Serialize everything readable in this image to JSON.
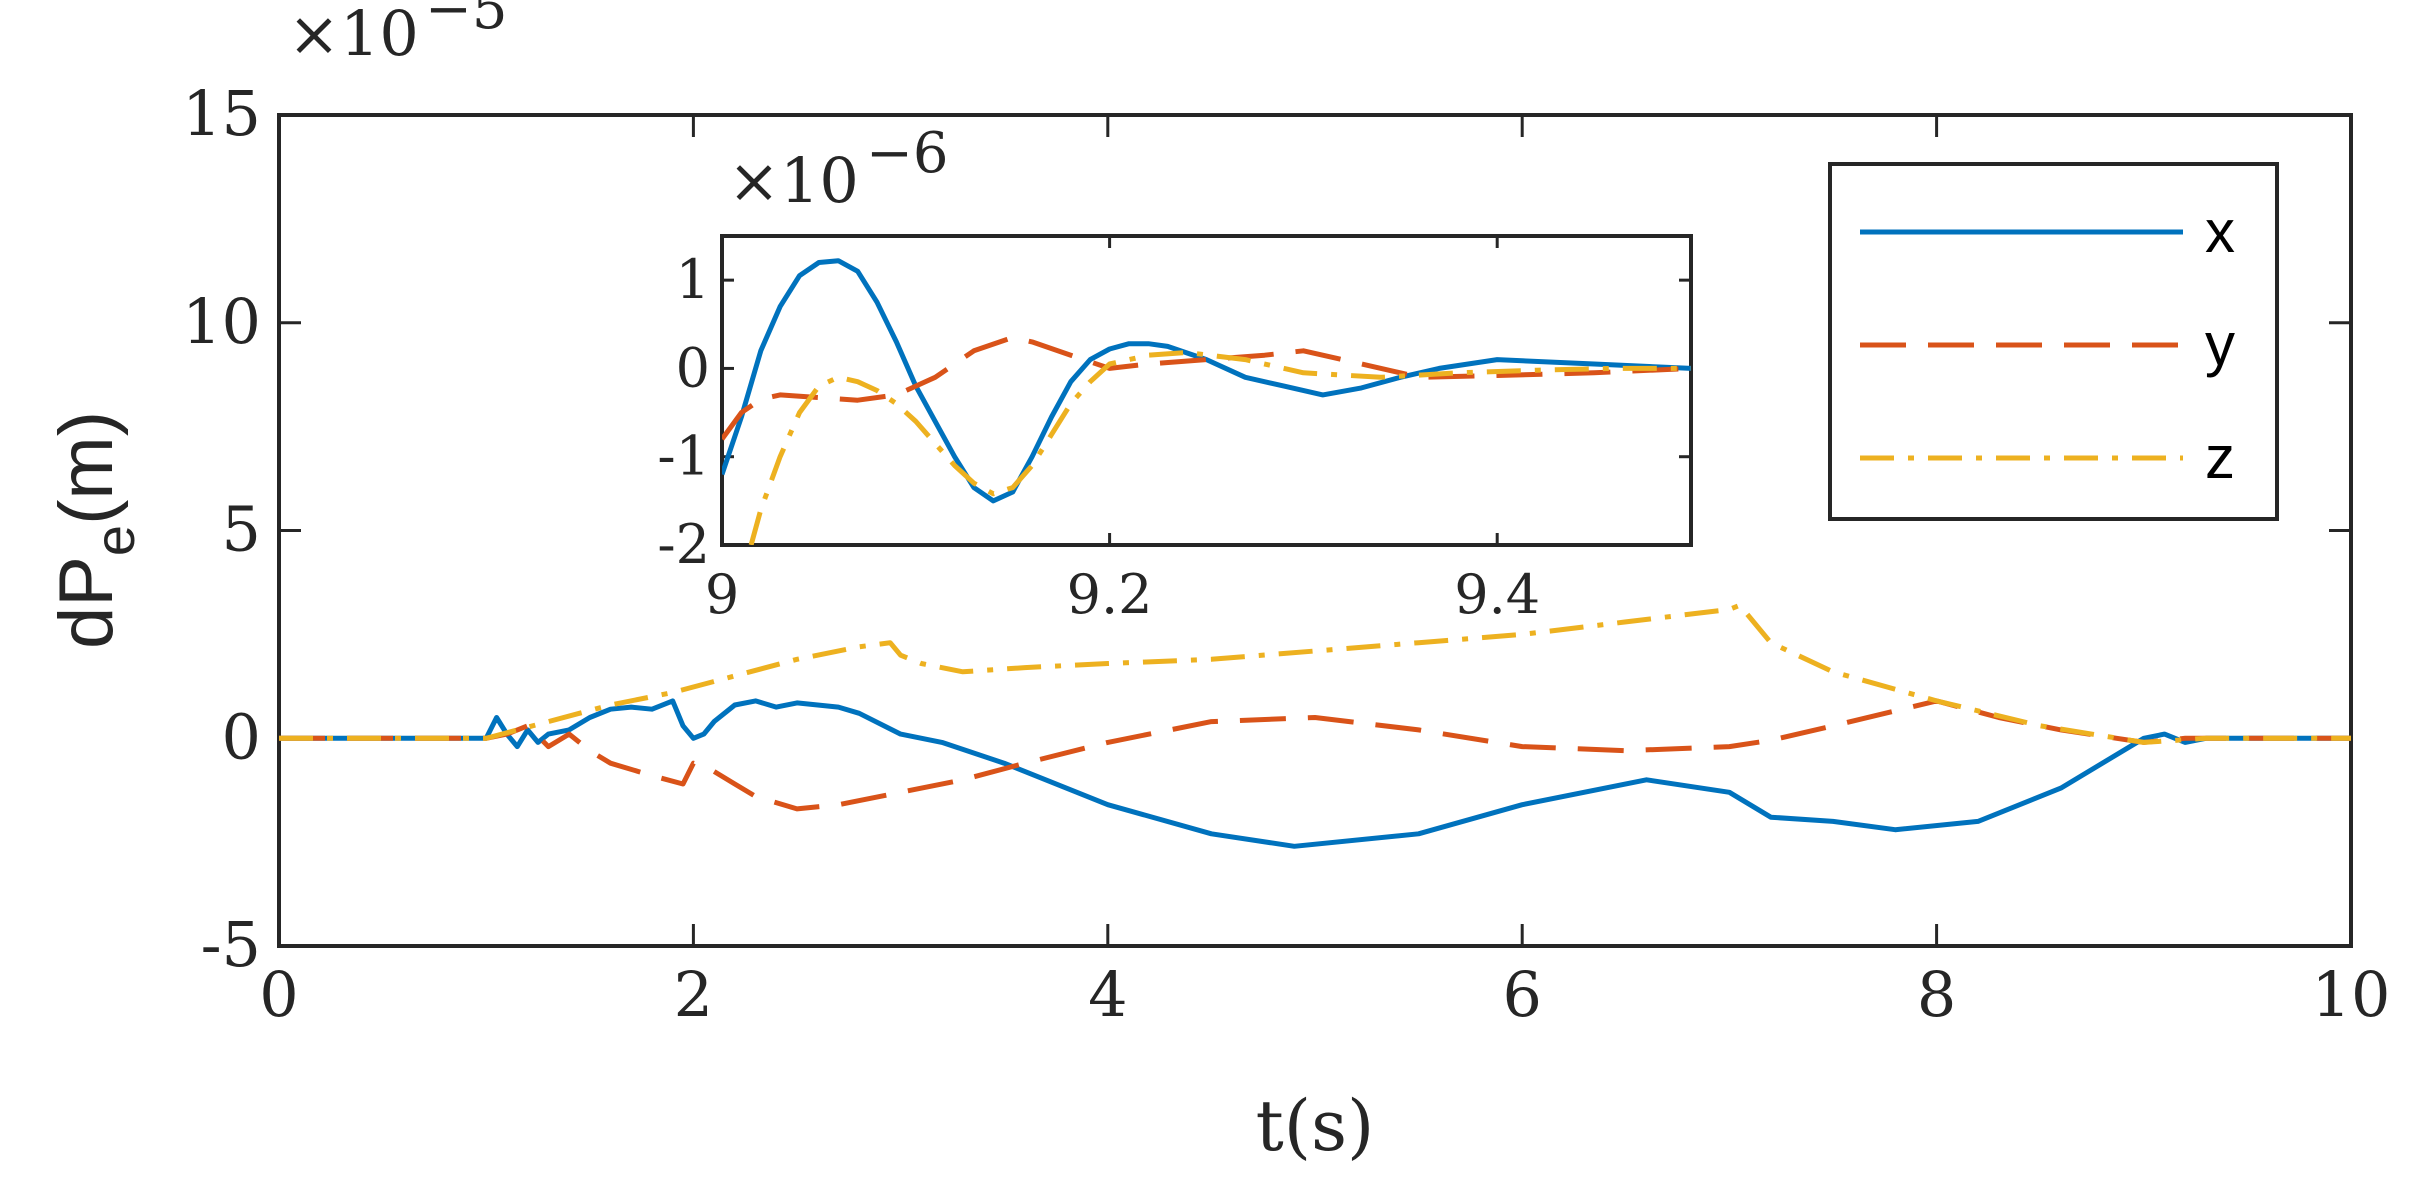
{
  "chart_data": [
    {
      "id": "main",
      "type": "line",
      "title": "",
      "xlabel": "t(s)",
      "ylabel_base": "dP",
      "ylabel_sub": "e",
      "ylabel_unit": "(m)",
      "scale_prefix": "×10",
      "scale_exponent": "−5",
      "xlim": [
        0,
        10
      ],
      "ylim": [
        -5,
        15
      ],
      "xticks": [
        0,
        2,
        4,
        6,
        8,
        10
      ],
      "xtick_labels": [
        "0",
        "2",
        "4",
        "6",
        "8",
        "10"
      ],
      "yticks": [
        -5,
        0,
        5,
        10,
        15
      ],
      "ytick_labels": [
        "-5",
        "0",
        "5",
        "10",
        "15"
      ],
      "grid": false,
      "legend_position": "top-right",
      "series": [
        {
          "name": "x",
          "color": "#0072BD",
          "dash": "solid",
          "x": [
            0,
            1.0,
            1.05,
            1.1,
            1.15,
            1.2,
            1.25,
            1.3,
            1.4,
            1.5,
            1.6,
            1.7,
            1.8,
            1.9,
            1.95,
            2.0,
            2.05,
            2.1,
            2.2,
            2.3,
            2.4,
            2.5,
            2.6,
            2.7,
            2.8,
            3.0,
            3.2,
            3.5,
            4.0,
            4.5,
            4.9,
            5.5,
            6.0,
            6.6,
            7.0,
            7.2,
            7.5,
            7.8,
            8.2,
            8.6,
            9.0,
            9.1,
            9.2,
            9.3,
            10
          ],
          "y": [
            0,
            0,
            0.5,
            0.1,
            -0.2,
            0.2,
            -0.1,
            0.1,
            0.2,
            0.5,
            0.7,
            0.75,
            0.7,
            0.9,
            0.3,
            0.0,
            0.1,
            0.4,
            0.8,
            0.9,
            0.75,
            0.85,
            0.8,
            0.75,
            0.6,
            0.1,
            -0.1,
            -0.6,
            -1.6,
            -2.3,
            -2.6,
            -2.3,
            -1.6,
            -1.0,
            -1.3,
            -1.9,
            -2.0,
            -2.2,
            -2.0,
            -1.2,
            0.0,
            0.1,
            -0.1,
            0.0,
            0
          ]
        },
        {
          "name": "y",
          "color": "#D95319",
          "dash": "long-dash",
          "x": [
            0,
            1.0,
            1.1,
            1.2,
            1.3,
            1.4,
            1.5,
            1.6,
            1.8,
            1.95,
            2.0,
            2.1,
            2.2,
            2.3,
            2.5,
            2.7,
            3.0,
            3.3,
            3.6,
            4.0,
            4.5,
            5.0,
            5.5,
            6.0,
            6.5,
            7.0,
            7.2,
            7.5,
            8.0,
            8.3,
            8.6,
            9.0,
            9.2,
            10
          ],
          "y": [
            0,
            0,
            0.1,
            0.3,
            -0.2,
            0.1,
            -0.3,
            -0.6,
            -0.9,
            -1.1,
            -0.6,
            -0.8,
            -1.1,
            -1.4,
            -1.7,
            -1.6,
            -1.3,
            -1.0,
            -0.6,
            -0.1,
            0.4,
            0.5,
            0.2,
            -0.2,
            -0.3,
            -0.2,
            -0.05,
            0.3,
            0.9,
            0.5,
            0.2,
            -0.1,
            0.0,
            0
          ]
        },
        {
          "name": "z",
          "color": "#EDB120",
          "dash": "dash-dot",
          "x": [
            0,
            1.0,
            1.3,
            1.6,
            1.9,
            2.2,
            2.5,
            2.8,
            2.95,
            3.0,
            3.1,
            3.3,
            3.6,
            4.0,
            4.5,
            5.0,
            5.5,
            6.0,
            6.5,
            7.0,
            7.05,
            7.2,
            7.5,
            8.0,
            8.5,
            9.0,
            9.3,
            10
          ],
          "y": [
            0,
            0,
            0.4,
            0.8,
            1.1,
            1.5,
            1.9,
            2.2,
            2.3,
            2.0,
            1.8,
            1.6,
            1.7,
            1.8,
            1.9,
            2.1,
            2.3,
            2.5,
            2.8,
            3.1,
            3.2,
            2.3,
            1.6,
            0.9,
            0.3,
            -0.1,
            0.0,
            0
          ]
        }
      ]
    },
    {
      "id": "inset",
      "type": "line",
      "title": "",
      "xlabel": "",
      "ylabel": "",
      "scale_prefix": "×10",
      "scale_exponent": "−6",
      "xlim": [
        9,
        9.5
      ],
      "ylim": [
        -2,
        1.5
      ],
      "xticks": [
        9,
        9.2,
        9.4
      ],
      "xtick_labels": [
        "9",
        "9.2",
        "9.4"
      ],
      "yticks": [
        -2,
        -1,
        0,
        1
      ],
      "ytick_labels": [
        "-2",
        "-1",
        "0",
        "1"
      ],
      "grid": false,
      "series": [
        {
          "name": "x",
          "color": "#0072BD",
          "dash": "solid",
          "x": [
            9.0,
            9.01,
            9.02,
            9.03,
            9.04,
            9.05,
            9.06,
            9.07,
            9.08,
            9.09,
            9.1,
            9.11,
            9.12,
            9.13,
            9.14,
            9.15,
            9.16,
            9.17,
            9.18,
            9.19,
            9.2,
            9.21,
            9.22,
            9.23,
            9.25,
            9.27,
            9.29,
            9.31,
            9.33,
            9.35,
            9.37,
            9.4,
            9.45,
            9.5
          ],
          "y": [
            -1.2,
            -0.55,
            0.2,
            0.7,
            1.05,
            1.2,
            1.22,
            1.1,
            0.75,
            0.3,
            -0.2,
            -0.6,
            -1.0,
            -1.35,
            -1.5,
            -1.4,
            -1.0,
            -0.55,
            -0.15,
            0.1,
            0.22,
            0.28,
            0.28,
            0.25,
            0.1,
            -0.1,
            -0.2,
            -0.3,
            -0.22,
            -0.1,
            0.0,
            0.1,
            0.05,
            0.0
          ]
        },
        {
          "name": "y",
          "color": "#D95319",
          "dash": "long-dash",
          "x": [
            9.0,
            9.01,
            9.02,
            9.03,
            9.05,
            9.07,
            9.09,
            9.11,
            9.13,
            9.15,
            9.16,
            9.18,
            9.2,
            9.22,
            9.25,
            9.28,
            9.3,
            9.33,
            9.36,
            9.4,
            9.45,
            9.5
          ],
          "y": [
            -0.8,
            -0.5,
            -0.35,
            -0.3,
            -0.33,
            -0.36,
            -0.3,
            -0.1,
            0.2,
            0.35,
            0.3,
            0.15,
            0.0,
            0.05,
            0.1,
            0.15,
            0.2,
            0.05,
            -0.1,
            -0.08,
            -0.05,
            0.0
          ]
        },
        {
          "name": "z",
          "color": "#EDB120",
          "dash": "dash-dot",
          "x": [
            9.015,
            9.02,
            9.03,
            9.04,
            9.05,
            9.06,
            9.07,
            9.08,
            9.09,
            9.1,
            9.11,
            9.12,
            9.13,
            9.14,
            9.15,
            9.16,
            9.17,
            9.18,
            9.19,
            9.2,
            9.22,
            9.24,
            9.27,
            9.3,
            9.34,
            9.38,
            9.42,
            9.46,
            9.5
          ],
          "y": [
            -2.0,
            -1.6,
            -1.0,
            -0.5,
            -0.2,
            -0.1,
            -0.15,
            -0.25,
            -0.4,
            -0.6,
            -0.85,
            -1.1,
            -1.3,
            -1.42,
            -1.35,
            -1.1,
            -0.75,
            -0.4,
            -0.15,
            0.05,
            0.15,
            0.18,
            0.1,
            -0.05,
            -0.1,
            -0.05,
            -0.02,
            0.0,
            0.0
          ]
        }
      ]
    }
  ]
}
